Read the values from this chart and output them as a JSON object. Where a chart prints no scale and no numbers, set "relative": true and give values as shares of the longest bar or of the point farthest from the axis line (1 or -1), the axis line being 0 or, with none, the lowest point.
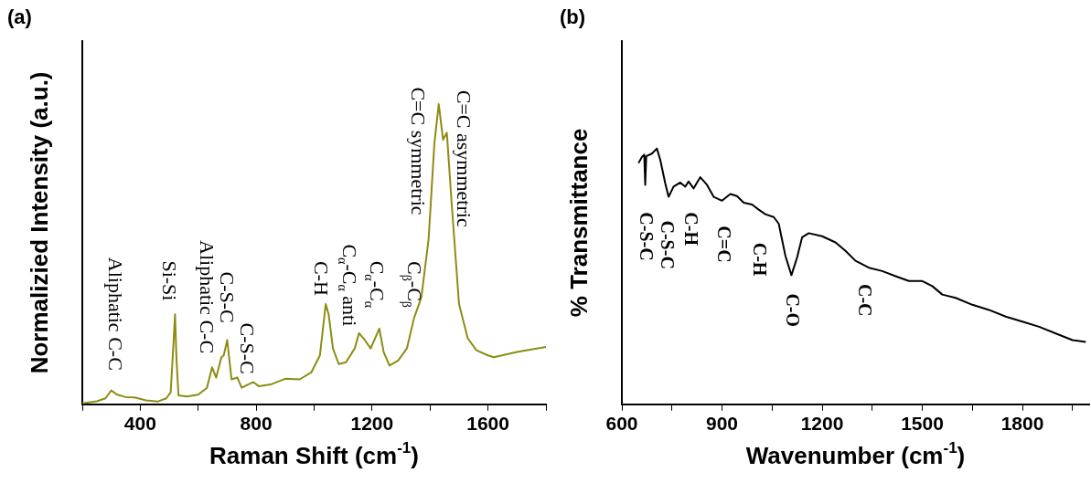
{
  "chart_data": [
    {
      "type": "line",
      "title": "(a)",
      "xlabel": "Raman Shift (cm$^{-1}$)",
      "ylabel": "Normalizied Intensity (a.u.)",
      "relative": true,
      "color": "#8c8c14",
      "marker": "none",
      "line_style": "solid",
      "grid": false,
      "xlim": [
        200,
        1800
      ],
      "xticks": [
        {
          "value": 200,
          "label": null
        },
        400,
        {
          "value": 600,
          "label": null
        },
        800,
        {
          "value": 1000,
          "label": null
        },
        1200,
        {
          "value": 1400,
          "label": null
        },
        1600,
        {
          "value": 1800,
          "label": null
        }
      ],
      "x": [
        200,
        250,
        280,
        300,
        320,
        350,
        380,
        420,
        460,
        490,
        505,
        515,
        520,
        525,
        532,
        560,
        600,
        630,
        648,
        662,
        680,
        688,
        700,
        715,
        735,
        750,
        790,
        810,
        850,
        900,
        950,
        990,
        1020,
        1040,
        1050,
        1065,
        1085,
        1110,
        1140,
        1155,
        1175,
        1195,
        1225,
        1240,
        1260,
        1290,
        1320,
        1345,
        1370,
        1395,
        1415,
        1430,
        1445,
        1458,
        1475,
        1500,
        1530,
        1560,
        1600,
        1620,
        1700,
        1800
      ],
      "values": [
        0.003,
        0.01,
        0.02,
        0.046,
        0.032,
        0.024,
        0.023,
        0.013,
        0.009,
        0.02,
        0.04,
        0.21,
        0.3,
        0.15,
        0.03,
        0.026,
        0.032,
        0.055,
        0.123,
        0.089,
        0.157,
        0.163,
        0.214,
        0.083,
        0.089,
        0.055,
        0.074,
        0.06,
        0.066,
        0.085,
        0.083,
        0.106,
        0.163,
        0.334,
        0.3,
        0.186,
        0.134,
        0.14,
        0.186,
        0.237,
        0.214,
        0.186,
        0.252,
        0.174,
        0.129,
        0.146,
        0.186,
        0.288,
        0.356,
        0.55,
        0.869,
        1,
        0.881,
        0.905,
        0.664,
        0.334,
        0.22,
        0.18,
        0.163,
        0.157,
        0.174,
        0.191
      ],
      "annotations": [
        "Aliphatic C-C",
        "Si-Si",
        "Aliphatic C-C",
        "C-S-C",
        "C-S-C",
        "C-H",
        "C$_{α}$-C$_{α}$ anti",
        "C$_{α}$-C$_{α}$",
        "C$_{β}$-C$_{β}$",
        "C=C symmetric",
        "C=C asymmetric"
      ]
    },
    {
      "type": "line",
      "title": "(b)",
      "xlabel": "Wavenumber (cm$^{-1}$)",
      "ylabel": "% Transmittance",
      "relative": true,
      "color": "#000000",
      "marker": "none",
      "line_style": "solid",
      "grid": false,
      "xlim": [
        600,
        2000
      ],
      "xticks": [
        600,
        {
          "value": 750,
          "label": null
        },
        900,
        {
          "value": 1050,
          "label": null
        },
        1200,
        {
          "value": 1350,
          "label": null
        },
        1500,
        {
          "value": 1650,
          "label": null
        },
        1800,
        {
          "value": 1950,
          "label": null
        }
      ],
      "x": [
        650,
        660,
        667,
        670,
        673,
        690,
        705,
        715,
        730,
        740,
        755,
        775,
        790,
        800,
        815,
        835,
        855,
        875,
        900,
        925,
        945,
        965,
        990,
        1010,
        1030,
        1055,
        1070,
        1090,
        1108,
        1125,
        1140,
        1160,
        1200,
        1240,
        1270,
        1300,
        1340,
        1380,
        1420,
        1460,
        1500,
        1530,
        1560,
        1600,
        1650,
        1700,
        1750,
        1800,
        1850,
        1900,
        1950,
        1990
      ],
      "values": [
        0.943,
        0.967,
        0.976,
        0.858,
        0.97,
        0.98,
        1,
        0.956,
        0.864,
        0.811,
        0.851,
        0.867,
        0.851,
        0.871,
        0.844,
        0.888,
        0.858,
        0.811,
        0.796,
        0.822,
        0.814,
        0.788,
        0.781,
        0.761,
        0.743,
        0.732,
        0.706,
        0.58,
        0.505,
        0.574,
        0.653,
        0.669,
        0.657,
        0.633,
        0.6,
        0.561,
        0.534,
        0.521,
        0.501,
        0.482,
        0.482,
        0.462,
        0.429,
        0.416,
        0.389,
        0.369,
        0.343,
        0.323,
        0.303,
        0.277,
        0.251,
        0.244
      ],
      "annotations": [
        "C-S-C",
        "C-S-C",
        "C-H",
        "C=C",
        "C-H",
        "C-O",
        "C-C"
      ]
    }
  ]
}
